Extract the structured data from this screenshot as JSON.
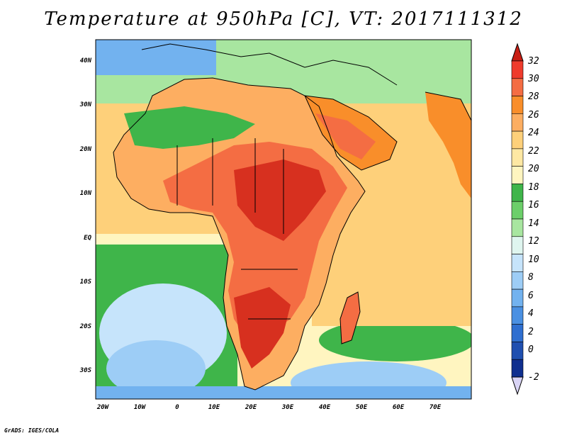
{
  "title": "Temperature at 950hPa [C], VT: 2017111312",
  "credit": "GrADS: IGES/COLA",
  "axes": {
    "lat_labels": [
      "40N",
      "30N",
      "20N",
      "10N",
      "EQ",
      "10S",
      "20S",
      "30S"
    ],
    "lon_labels": [
      "20W",
      "10W",
      "0",
      "10E",
      "20E",
      "30E",
      "40E",
      "50E",
      "60E",
      "70E"
    ]
  },
  "colorbar": {
    "labels": [
      "32",
      "30",
      "28",
      "26",
      "24",
      "22",
      "20",
      "18",
      "16",
      "14",
      "12",
      "10",
      "8",
      "6",
      "4",
      "2",
      "0",
      "-2"
    ],
    "colors": [
      "#d7301f",
      "#ef3b2c",
      "#f46d43",
      "#f98e2a",
      "#fdae61",
      "#fed07a",
      "#fee8a3",
      "#fff5c0",
      "#3fb54a",
      "#6ccf6a",
      "#a8e6a0",
      "#dff5ef",
      "#c6e4fb",
      "#9dcdf6",
      "#72b2ef",
      "#4a90e2",
      "#2f6fd0",
      "#1f4fb0",
      "#0f2f8f",
      "#061a6a"
    ]
  },
  "colors": {
    "ocean_south": "#9dcdf6",
    "ocean_mid": "#3fb54a",
    "ocean_tropics": "#fee8a3",
    "land_hot": "#d7301f",
    "land_warm": "#f98e2a",
    "med_cool": "#6ccf6a"
  }
}
